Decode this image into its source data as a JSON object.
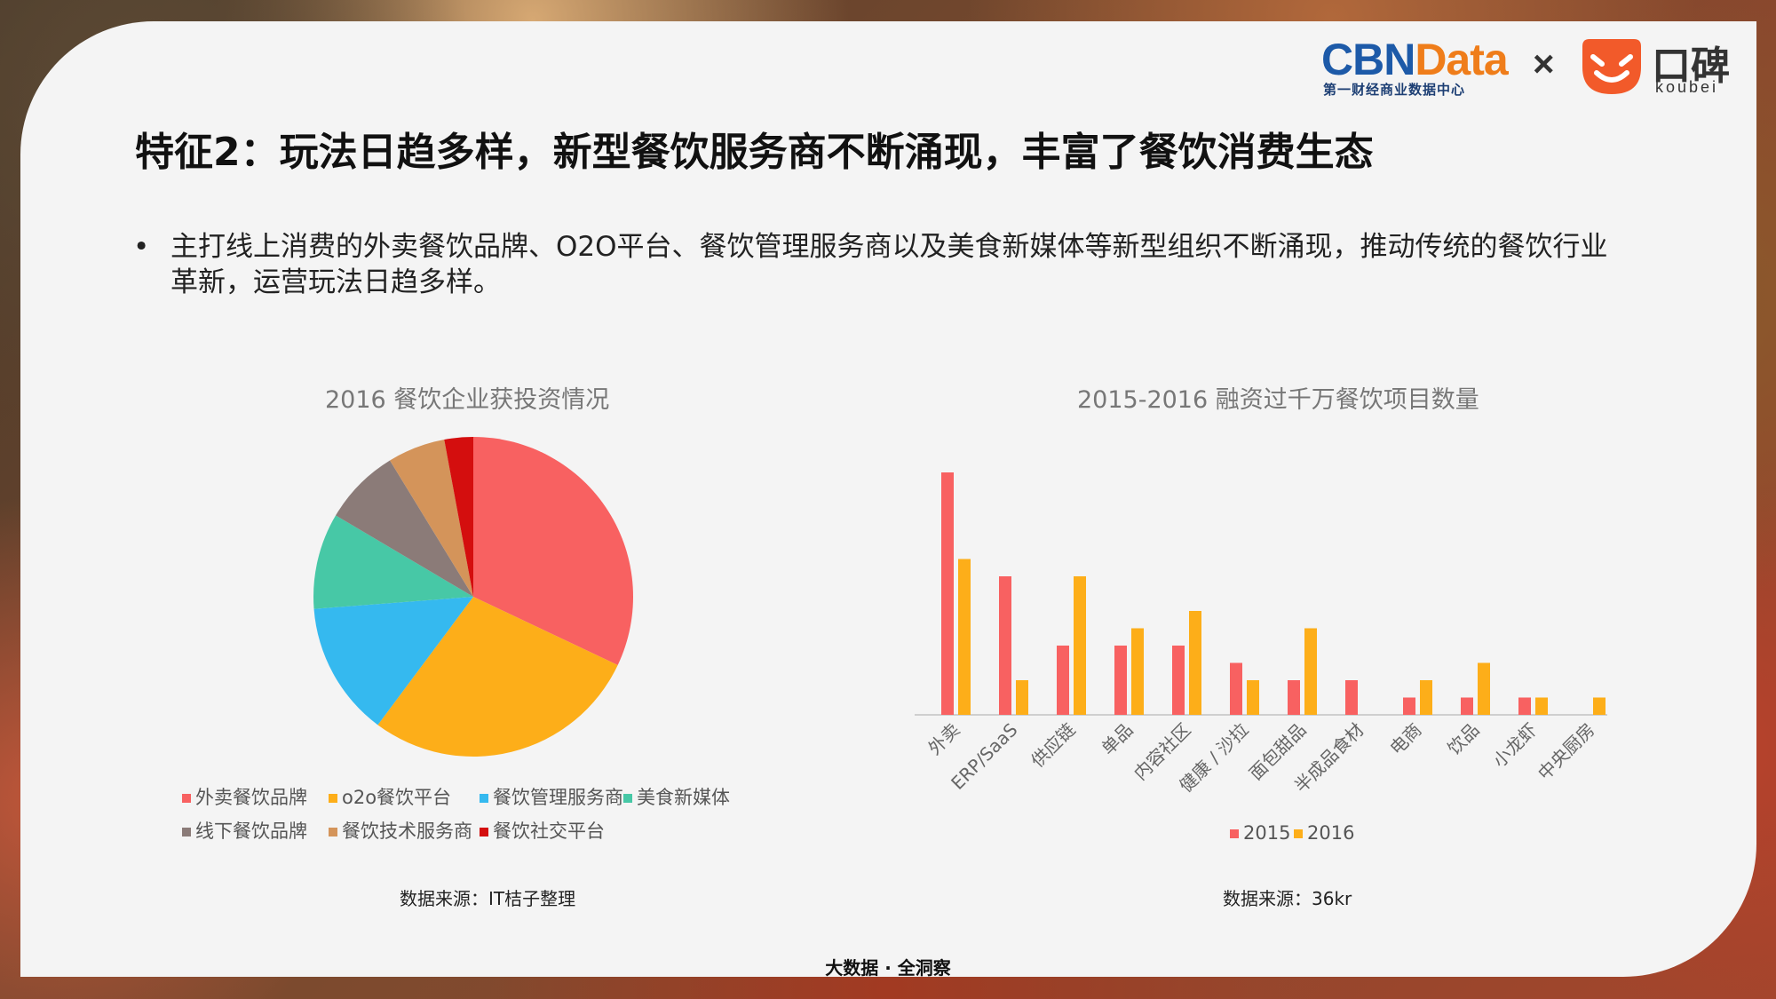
{
  "header": {
    "cbn_part1": "CBN",
    "cbn_part2": "Data",
    "cbn_sub": "第一财经商业数据中心",
    "times": "×",
    "koubei_cn": "口碑",
    "koubei_en": "koubei"
  },
  "title": "特征2：玩法日趋多样，新型餐饮服务商不断涌现，丰富了餐饮消费生态",
  "bullet": {
    "marker": "•",
    "text": "主打线上消费的外卖餐饮品牌、O2O平台、餐饮管理服务商以及美食新媒体等新型组织不断涌现，推动传统的餐饮行业革新，运营玩法日趋多样。"
  },
  "chart_data": [
    {
      "type": "pie",
      "title": "2016 餐饮企业获投资情况",
      "source": "数据来源：IT桔子整理",
      "legend_position": "bottom",
      "slices": [
        {
          "label": "外卖餐饮品牌",
          "value": 33,
          "color": "#f86161"
        },
        {
          "label": "o2o餐饮平台",
          "value": 29,
          "color": "#fdae19"
        },
        {
          "label": "餐饮管理服务商",
          "value": 14,
          "color": "#35b9ef"
        },
        {
          "label": "美食新媒体",
          "value": 10,
          "color": "#47c8a6"
        },
        {
          "label": "线下餐饮品牌",
          "value": 8,
          "color": "#8b7b78"
        },
        {
          "label": "餐饮技术服务商",
          "value": 6,
          "color": "#d4945a"
        },
        {
          "label": "餐饮社交平台",
          "value": 3,
          "color": "#d40e0e"
        }
      ]
    },
    {
      "type": "bar",
      "title": "2015-2016  融资过千万餐饮项目数量",
      "source": "数据来源：36kr",
      "legend_position": "bottom",
      "categories": [
        "外卖",
        "ERP/SaaS",
        "供应链",
        "单品",
        "内容社区",
        "健康 / 沙拉",
        "面包甜品",
        "半成品食材",
        "电商",
        "饮品",
        "小龙虾",
        "中央厨房"
      ],
      "series": [
        {
          "name": "2015",
          "color": "#f86161",
          "values": [
            14,
            8,
            4,
            4,
            4,
            3,
            2,
            2,
            1,
            1,
            1,
            0
          ]
        },
        {
          "name": "2016",
          "color": "#fdae19",
          "values": [
            9,
            2,
            8,
            5,
            6,
            2,
            5,
            0,
            2,
            3,
            1,
            1
          ]
        }
      ],
      "ylim": [
        0,
        14
      ]
    }
  ],
  "footer": "大数据 · 全洞察"
}
